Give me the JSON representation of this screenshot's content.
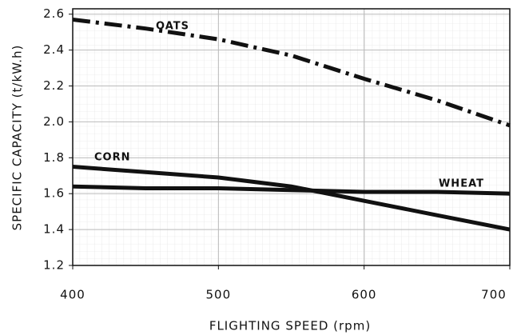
{
  "chart_data": {
    "type": "line",
    "xlabel": "FLIGHTING  SPEED (rpm)",
    "ylabel": "SPECIFIC  CAPACITY (t/kW.h)",
    "x": [
      400,
      450,
      500,
      550,
      600,
      650,
      700
    ],
    "series": [
      {
        "name": "OATS",
        "color": "#111111",
        "linestyle": "dashdot",
        "values": [
          2.57,
          2.52,
          2.46,
          2.37,
          2.24,
          2.12,
          1.98
        ]
      },
      {
        "name": "CORN",
        "color": "#111111",
        "linestyle": "solid",
        "values": [
          1.75,
          1.72,
          1.69,
          1.64,
          1.56,
          1.48,
          1.4
        ]
      },
      {
        "name": "WHEAT",
        "color": "#111111",
        "linestyle": "solid",
        "values": [
          1.64,
          1.63,
          1.63,
          1.62,
          1.61,
          1.61,
          1.6
        ]
      }
    ],
    "xlim": [
      400,
      700
    ],
    "xticks": [
      400,
      500,
      600,
      700
    ],
    "ylim": [
      1.2,
      2.63
    ],
    "yticks": [
      1.2,
      1.4,
      1.6,
      1.8,
      {
        "value": 2,
        "label": "2.0"
      },
      2.2,
      2.4,
      2.6
    ],
    "grid": true
  }
}
